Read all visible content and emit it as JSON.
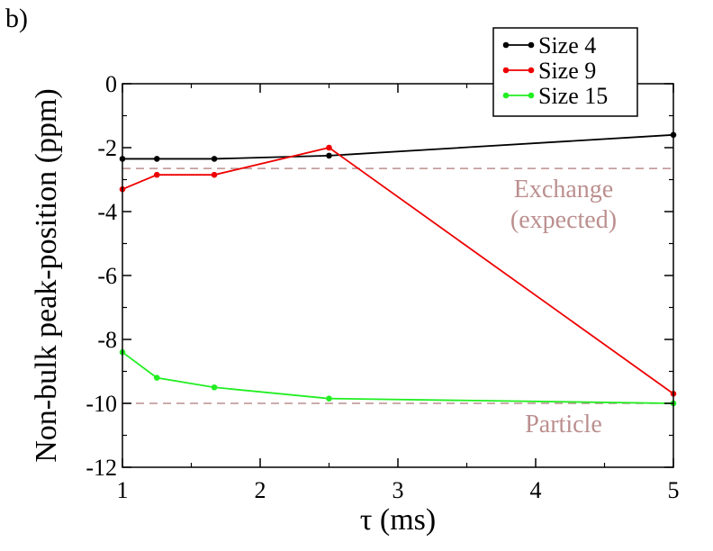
{
  "panel_label": "b)",
  "chart_data": {
    "type": "line",
    "title": "",
    "xlabel": "τ (ms)",
    "ylabel": "Non-bulk peak-position (ppm)",
    "xlim": [
      1,
      5
    ],
    "ylim": [
      -12,
      0
    ],
    "x_ticks": [
      1,
      2,
      3,
      4,
      5
    ],
    "y_ticks": [
      0,
      -2,
      -4,
      -6,
      -8,
      -10,
      -12
    ],
    "x_tick_labels": [
      "1",
      "2",
      "3",
      "4",
      "5"
    ],
    "y_tick_labels": [
      "0",
      "-2",
      "-4",
      "-6",
      "-8",
      "-10",
      "-12"
    ],
    "grid": false,
    "legend_position": "top-right",
    "series": [
      {
        "name": "Size 4",
        "color": "#000000",
        "x": [
          1,
          1.25,
          1.667,
          2.5,
          5
        ],
        "y": [
          -2.35,
          -2.35,
          -2.35,
          -2.25,
          -1.6
        ]
      },
      {
        "name": "Size 9",
        "color": "#ee0000",
        "x": [
          1,
          1.25,
          1.667,
          2.5,
          5
        ],
        "y": [
          -3.3,
          -2.85,
          -2.85,
          -2.0,
          -9.7
        ]
      },
      {
        "name": "Size 15",
        "color": "#22ee22",
        "x": [
          1,
          1.25,
          1.667,
          2.5,
          5
        ],
        "y": [
          -8.4,
          -9.2,
          -9.5,
          -9.85,
          -10.0
        ]
      }
    ],
    "reference_lines": [
      {
        "name": "exchange",
        "y": -2.65,
        "color": "#bc8f8f",
        "style": "dashed",
        "label_lines": [
          "Exchange",
          "(expected)"
        ]
      },
      {
        "name": "particle",
        "y": -10.0,
        "color": "#bc8f8f",
        "style": "dashed",
        "label_lines": [
          "Particle"
        ]
      }
    ]
  }
}
